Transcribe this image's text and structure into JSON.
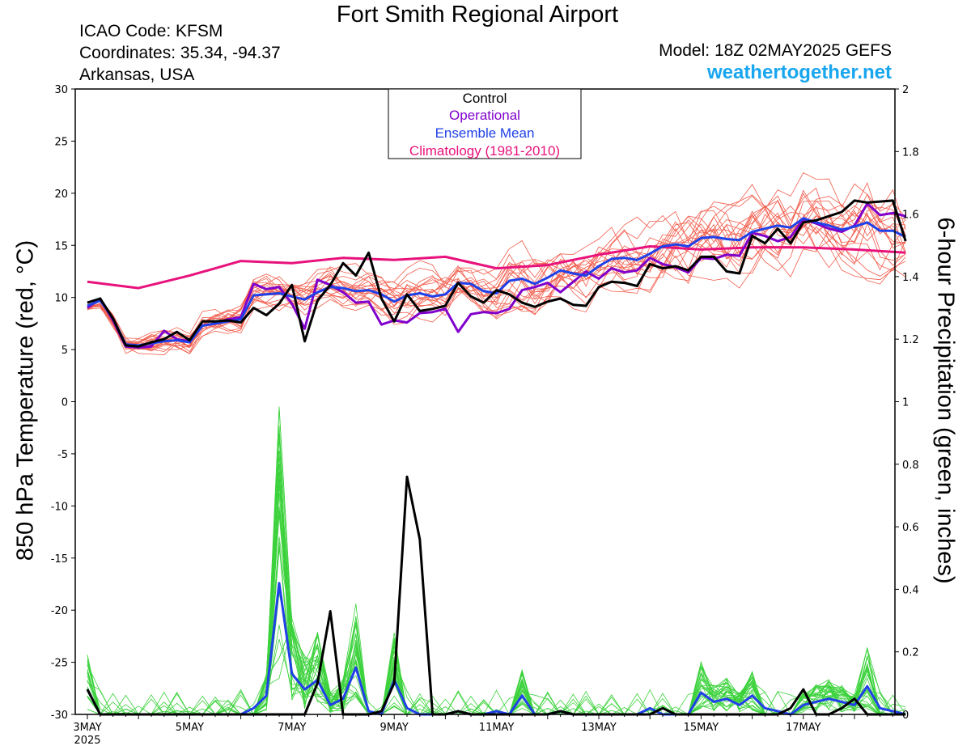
{
  "header": {
    "title": "Fort Smith Regional Airport",
    "icao": "ICAO Code: KFSM",
    "coordinates": "Coordinates: 35.34, -94.37",
    "region": "Arkansas, USA",
    "model": "Model: 18Z 02MAY2025 GEFS",
    "site": "weathertogether.net"
  },
  "colors": {
    "control": "#000000",
    "operational": "#8000cc",
    "ensemble_mean": "#2040e8",
    "climatology": "#e8127c",
    "members_temp": "#f25c4c",
    "members_precip": "#3cd23c",
    "site": "#18a6ee"
  },
  "chart_data": {
    "type": "line",
    "ylabel": "850 hPa Temperature (red, °C)",
    "y2label": "6-hour Precipitation (green, inches)",
    "ylim": [
      -30,
      30
    ],
    "y2lim": [
      0,
      2
    ],
    "yticks": [
      "30",
      "25",
      "20",
      "15",
      "10",
      "5",
      "0",
      "-5",
      "-10",
      "-15",
      "-20",
      "-25",
      "-30"
    ],
    "y2ticks": [
      "2",
      "1.8",
      "1.6",
      "1.4",
      "1.2",
      "1",
      "0.8",
      "0.6",
      "0.4",
      "0.2",
      "0"
    ],
    "xlim": [
      0,
      16
    ],
    "xticks": [
      {
        "label": "3MAY",
        "sub": "2025",
        "x": 0
      },
      {
        "label": "5MAY",
        "sub": "",
        "x": 2
      },
      {
        "label": "7MAY",
        "sub": "",
        "x": 4
      },
      {
        "label": "9MAY",
        "sub": "",
        "x": 6
      },
      {
        "label": "11MAY",
        "sub": "",
        "x": 8
      },
      {
        "label": "13MAY",
        "sub": "",
        "x": 10
      },
      {
        "label": "15MAY",
        "sub": "",
        "x": 12
      },
      {
        "label": "17MAY",
        "sub": "",
        "x": 14
      }
    ],
    "legend": {
      "position": "top-center",
      "entries": [
        {
          "label": "Control",
          "color": "#000000"
        },
        {
          "label": "Operational",
          "color": "#8000cc"
        },
        {
          "label": "Ensemble Mean",
          "color": "#2040e8"
        },
        {
          "label": "Climatology (1981-2010)",
          "color": "#e8127c"
        }
      ]
    },
    "series": [
      {
        "name": "Control",
        "axis": "temperature",
        "x_step_days": 0.25,
        "values": [
          9.5,
          9.9,
          8.0,
          5.4,
          5.3,
          5.7,
          6.0,
          6.7,
          5.9,
          7.7,
          7.7,
          7.8,
          7.6,
          9.0,
          8.3,
          9.4,
          11.2,
          5.8,
          9.7,
          11.2,
          13.3,
          12.1,
          14.3,
          9.9,
          7.7,
          10.3,
          8.7,
          8.9,
          9.2,
          11.4,
          10.1,
          9.5,
          10.7,
          10.3,
          9.5,
          9.1,
          9.6,
          9.9,
          9.3,
          9.2,
          11.0,
          11.5,
          11.4,
          11.1,
          13.2,
          12.8,
          13.0,
          12.6,
          13.9,
          13.9,
          12.5,
          12.3,
          15.9,
          15.2,
          16.6,
          15.2,
          17.2,
          17.4,
          17.8,
          18.2,
          19.3,
          19.1,
          19.2,
          19.3,
          15.4
        ]
      },
      {
        "name": "Operational",
        "axis": "temperature",
        "x_step_days": 0.25,
        "values": [
          9.0,
          9.9,
          7.8,
          5.3,
          5.2,
          5.3,
          6.8,
          6.0,
          5.8,
          7.3,
          7.5,
          7.9,
          8.1,
          11.3,
          10.8,
          11.0,
          9.4,
          7.0,
          11.7,
          11.2,
          10.5,
          9.5,
          9.6,
          7.4,
          7.8,
          7.6,
          8.5,
          8.6,
          8.9,
          6.7,
          8.4,
          8.6,
          8.5,
          8.9,
          10.7,
          11.0,
          11.4,
          10.5,
          11.5,
          12.5,
          11.8,
          12.8,
          12.4,
          12.6,
          13.8,
          13.2,
          12.9,
          12.4,
          13.8,
          13.7,
          14.1,
          14.0,
          16.2,
          15.9,
          15.4,
          15.8,
          17.5,
          17.1,
          16.6,
          16.3,
          16.9,
          19.0,
          17.9,
          18.1,
          17.8
        ]
      },
      {
        "name": "Ensemble Mean",
        "axis": "temperature",
        "x_step_days": 0.25,
        "values": [
          9.2,
          9.7,
          8.0,
          5.5,
          5.4,
          5.6,
          5.8,
          5.9,
          5.7,
          7.3,
          7.5,
          7.7,
          7.9,
          10.2,
          10.3,
          10.4,
          10.1,
          9.8,
          10.5,
          11.0,
          10.9,
          10.6,
          10.7,
          10.3,
          9.6,
          10.2,
          10.4,
          10.1,
          10.3,
          11.4,
          11.3,
          10.6,
          10.4,
          11.6,
          11.8,
          11.3,
          11.9,
          12.6,
          12.3,
          12.1,
          13.0,
          13.7,
          13.8,
          13.6,
          14.2,
          14.9,
          15.1,
          14.9,
          15.7,
          15.8,
          15.6,
          15.5,
          16.3,
          16.6,
          16.9,
          16.7,
          17.6,
          17.2,
          16.9,
          16.5,
          16.8,
          17.2,
          16.4,
          16.4,
          15.8
        ]
      },
      {
        "name": "Climatology (1981-2010)",
        "axis": "temperature",
        "x": [
          0,
          1,
          2,
          3,
          4,
          5,
          6,
          7,
          8,
          9,
          10,
          11,
          12,
          13,
          14,
          15,
          16
        ],
        "values": [
          11.5,
          10.9,
          12.1,
          13.5,
          13.3,
          13.8,
          13.6,
          13.9,
          12.8,
          13.1,
          14.1,
          14.9,
          14.6,
          14.8,
          14.8,
          14.6,
          14.3
        ]
      },
      {
        "name": "Control",
        "axis": "precipitation",
        "x_step_days": 0.25,
        "values": [
          0.08,
          0.0,
          0.0,
          0.0,
          0.0,
          0.0,
          0.0,
          0.0,
          0.0,
          0.0,
          0.0,
          0.0,
          0.0,
          0.0,
          0.0,
          0.0,
          0.0,
          0.0,
          0.1,
          0.33,
          0.0,
          0.0,
          0.0,
          0.01,
          0.1,
          0.76,
          0.56,
          0.0,
          0.0,
          0.01,
          0.0,
          0.0,
          0.0,
          0.0,
          0.0,
          0.0,
          0.0,
          0.01,
          0.0,
          0.0,
          0.0,
          0.0,
          0.0,
          0.0,
          0.0,
          0.02,
          0.0,
          0.0,
          0.0,
          0.0,
          0.0,
          0.0,
          0.0,
          0.0,
          0.0,
          0.02,
          0.08,
          0.0,
          0.0,
          0.02,
          0.05,
          0.0,
          0.0,
          0.0,
          0.0
        ]
      },
      {
        "name": "Ensemble Mean",
        "axis": "precipitation",
        "x_step_days": 0.25,
        "values": [
          0.08,
          0.0,
          0.0,
          0.0,
          0.0,
          0.0,
          0.0,
          0.0,
          0.0,
          0.0,
          0.0,
          0.0,
          0.0,
          0.02,
          0.06,
          0.42,
          0.13,
          0.08,
          0.11,
          0.03,
          0.05,
          0.15,
          0.01,
          0.0,
          0.11,
          0.02,
          0.0,
          0.0,
          0.0,
          0.01,
          0.0,
          0.0,
          0.01,
          0.0,
          0.06,
          0.0,
          0.0,
          0.01,
          0.0,
          0.0,
          0.0,
          0.0,
          0.0,
          0.0,
          0.02,
          0.0,
          0.0,
          0.0,
          0.07,
          0.04,
          0.05,
          0.03,
          0.06,
          0.02,
          0.01,
          0.0,
          0.03,
          0.04,
          0.05,
          0.04,
          0.03,
          0.09,
          0.02,
          0.01,
          0.0
        ]
      }
    ],
    "ensemble_members": {
      "temperature_count": 20,
      "precipitation_count": 30
    }
  }
}
